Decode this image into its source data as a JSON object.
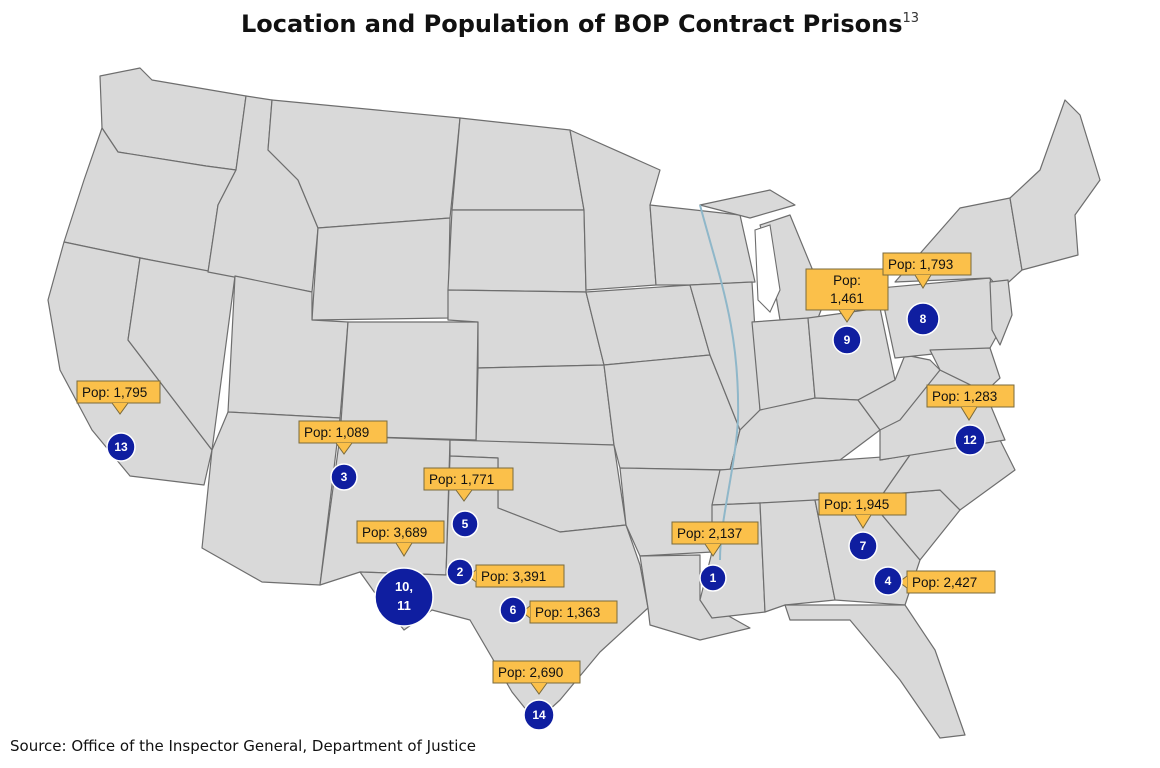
{
  "title": "Location and Population of BOP Contract Prisons",
  "title_footnote": "13",
  "source": "Source: Office of the Inspector General, Department of Justice",
  "colors": {
    "land": "#d9d9d9",
    "border": "#6e6e6e",
    "marker": "#0f1ea0",
    "callout": "#fbc04a"
  },
  "facilities": [
    {
      "id": "13",
      "marker": "13",
      "pop_label": "Pop: 1,795"
    },
    {
      "id": "3",
      "marker": "3",
      "pop_label": "Pop: 1,089"
    },
    {
      "id": "5",
      "marker": "5",
      "pop_label": "Pop: 1,771"
    },
    {
      "id": "10-11",
      "marker_lines": [
        "10,",
        "11"
      ],
      "pop_label": "Pop: 3,689"
    },
    {
      "id": "2",
      "marker": "2",
      "pop_label": "Pop: 3,391"
    },
    {
      "id": "6",
      "marker": "6",
      "pop_label": "Pop: 1,363"
    },
    {
      "id": "14",
      "marker": "14",
      "pop_label": "Pop: 2,690"
    },
    {
      "id": "1",
      "marker": "1",
      "pop_label": "Pop: 2,137"
    },
    {
      "id": "9",
      "marker": "9",
      "pop_label_lines": [
        "Pop:",
        "1,461"
      ]
    },
    {
      "id": "8",
      "marker": "8",
      "pop_label": "Pop: 1,793"
    },
    {
      "id": "12",
      "marker": "12",
      "pop_label": "Pop: 1,283"
    },
    {
      "id": "7",
      "marker": "7",
      "pop_label": "Pop: 1,945"
    },
    {
      "id": "4",
      "marker": "4",
      "pop_label": "Pop: 2,427"
    }
  ]
}
